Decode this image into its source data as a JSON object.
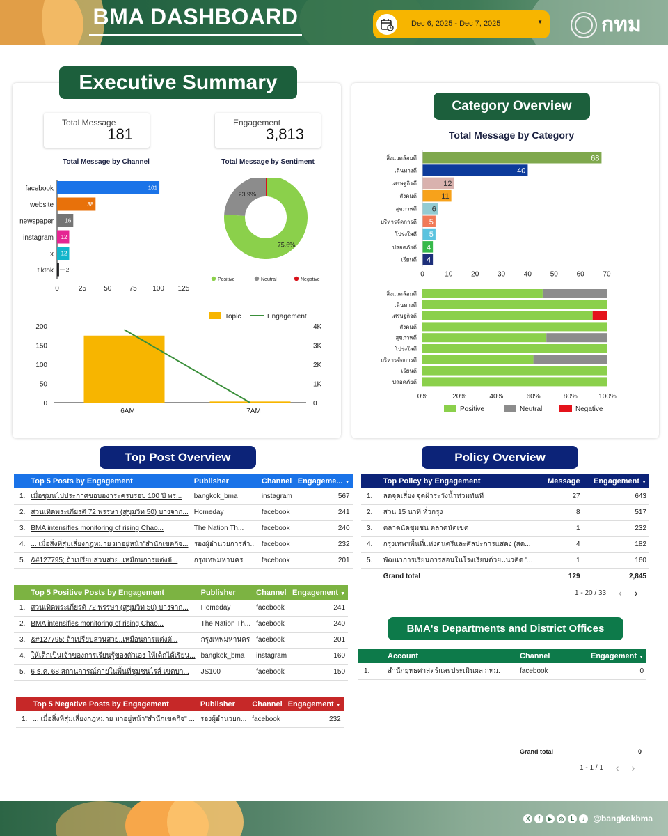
{
  "header": {
    "title": "BMA DASHBOARD",
    "date_range": "Dec 6, 2025 - Dec 7, 2025",
    "logo_text": "กทม"
  },
  "footer": {
    "handle": "@bangkokbma",
    "socials": [
      "x-icon",
      "facebook-icon",
      "youtube-icon",
      "instagram-icon",
      "line-icon",
      "tiktok-icon"
    ]
  },
  "executive": {
    "title": "Executive Summary",
    "total_message": {
      "label": "Total Message",
      "value": "181"
    },
    "engagement": {
      "label": "Engagement",
      "value": "3,813"
    },
    "channel_chart_title": "Total Message by Channel",
    "sentiment_chart_title": "Total Message by Sentiment"
  },
  "category": {
    "title": "Category Overview",
    "chart_title": "Total Message by Category"
  },
  "top_post": {
    "title": "Top Post Overview",
    "engagement_table": {
      "headers": [
        "Top 5 Posts by Engagement",
        "Publisher",
        "Channel",
        "Engageme..."
      ],
      "rows": [
        [
          "1.",
          "เมื่อชุมนไปประกาศขอบองาระครบรอบ 100 ปี พร...",
          "bangkok_bma",
          "instagram",
          "567"
        ],
        [
          "2.",
          "สวนเทิดพระเกียรติ 72 พรรษา (สุขุมวิท 50) บางจาก...",
          "Homeday",
          "facebook",
          "241"
        ],
        [
          "3.",
          "BMA intensifies monitoring of rising Chao...",
          "The Nation Th...",
          "facebook",
          "240"
        ],
        [
          "4.",
          "... เมื่อสิ่งที่สุ่มเสี่ยงกฎหมาย มาอยู่หน้า\"สำนักเขตกิจ...",
          "รองผู้อำนวยการสำ...",
          "facebook",
          "232"
        ],
        [
          "5.",
          "&#127795; ถ้าเปรียบสวนสวย..เหมือนการแต่งตั...",
          "กรุงเทพมหานคร",
          "facebook",
          "201"
        ]
      ]
    },
    "positive_table": {
      "headers": [
        "Top 5 Positive Posts by Engagement",
        "Publisher",
        "Channel",
        "Engagement"
      ],
      "rows": [
        [
          "1.",
          "สวนเทิดพระเกียรติ 72 พรรษา (สุขุมวิท 50) บางจาก...",
          "Homeday",
          "facebook",
          "241"
        ],
        [
          "2.",
          "BMA intensifies monitoring of rising Chao...",
          "The Nation Th...",
          "facebook",
          "240"
        ],
        [
          "3.",
          "&#127795; ถ้าเปรียบสวนสวย..เหมือนการแต่งตั...",
          "กรุงเทพมหานคร",
          "facebook",
          "201"
        ],
        [
          "4.",
          "ให้เด็กเป็นเจ้าของการเรียนรู้ของตัวเอง ให้เด็กได้เรียน...",
          "bangkok_bma",
          "instagram",
          "160"
        ],
        [
          "5.",
          "6 ธ.ค. 68 สถานการณ์ภายในพื้นที่ชุมชนไรส์ เขตบา...",
          "JS100",
          "facebook",
          "150"
        ]
      ]
    },
    "negative_table": {
      "headers": [
        "Top 5 Negative Posts by Engagement",
        "Publisher",
        "Channel",
        "Engagement"
      ],
      "rows": [
        [
          "1.",
          "... เมื่อสิ่งที่สุ่มเสี่ยงกฎหมาย มาอยู่หน้า\"สำนักเขตกิจ\" ...",
          "รองผู้อำนวยก...",
          "facebook",
          "232"
        ]
      ]
    }
  },
  "policy": {
    "title": "Policy Overview",
    "table": {
      "headers": [
        "Top Policy by Engagement",
        "Message",
        "Engagement"
      ],
      "rows": [
        [
          "1.",
          "ลดจุดเสี่ยง จุดฝ้าระวังน้ำท่วมทันที",
          "27",
          "643"
        ],
        [
          "2.",
          "สวน 15 นาที ทั่วกรุง",
          "8",
          "517"
        ],
        [
          "3.",
          "ตลาดนัดชุมชน ตลาดนัดเขต",
          "1",
          "232"
        ],
        [
          "4.",
          "กรุงเทพฯพื้นที่แห่งดนตรีและศิลปะการแสดง (สด...",
          "4",
          "182"
        ],
        [
          "5.",
          "พัฒนาการเรียนการสอนในโรงเรียนด้วยแนวคิด '...",
          "1",
          "160"
        ]
      ],
      "total_label": "Grand total",
      "total_message": "129",
      "total_engagement": "2,845",
      "pager": "1 - 20 / 33"
    }
  },
  "departments": {
    "title": "BMA's Departments and District Offices",
    "table": {
      "headers": [
        "Account",
        "Channel",
        "Engagement"
      ],
      "rows": [
        [
          "1.",
          "สำนักยุทธศาสตร์และประเมินผล กทม.",
          "facebook",
          "0"
        ]
      ],
      "total_label": "Grand total",
      "total_engagement": "0",
      "pager": "1 - 1 / 1"
    }
  },
  "chart_data": [
    {
      "type": "bar",
      "orientation": "horizontal",
      "title": "Total Message by Channel",
      "categories": [
        "facebook",
        "website",
        "newspaper",
        "instagram",
        "x",
        "tiktok"
      ],
      "values": [
        101,
        38,
        16,
        12,
        12,
        2
      ],
      "colors": [
        "#1a73e8",
        "#e8710a",
        "#757575",
        "#e52592",
        "#12b5cb",
        "#202124"
      ],
      "xlim": [
        0,
        125
      ],
      "xticks": [
        0,
        25,
        50,
        75,
        100,
        125
      ]
    },
    {
      "type": "pie",
      "title": "Total Message by Sentiment",
      "labels": [
        "Positive",
        "Neutral",
        "Negative",
        ""
      ],
      "values": [
        75.6,
        23.9,
        0.5,
        0
      ],
      "value_labels": [
        "75.6%",
        "23.9%",
        "",
        ""
      ],
      "colors": [
        "#8bd04b",
        "#8c8c8c",
        "#d8121b",
        "#f7b500"
      ]
    },
    {
      "type": "bar",
      "combo": true,
      "categories": [
        "6AM",
        "7AM"
      ],
      "series": [
        {
          "name": "Topic",
          "type": "bar",
          "values": [
            175,
            3
          ],
          "color": "#f7b500"
        },
        {
          "name": "Engagement",
          "type": "line",
          "values": [
            3813,
            0
          ],
          "color": "#3a8f3a"
        }
      ],
      "ylim": [
        0,
        200
      ],
      "yticks": [
        0,
        50,
        100,
        150,
        200
      ],
      "y2lim": [
        0,
        4000
      ],
      "y2ticks": [
        "0",
        "1K",
        "2K",
        "3K",
        "4K"
      ]
    },
    {
      "type": "bar",
      "orientation": "horizontal",
      "title": "Total Message by Category",
      "categories": [
        "สิ่งแวดล้อมดี",
        "เดินทางดี",
        "เศรษฐกิจดี",
        "สังคมดี",
        "สุขภาพดี",
        "บริหารจัดการดี",
        "โปร่งใสดี",
        "ปลอดภัยดี",
        "เรียนดี"
      ],
      "values": [
        68,
        40,
        12,
        11,
        6,
        5,
        5,
        4,
        4
      ],
      "colors": [
        "#7fa84d",
        "#0d3b9b",
        "#d9b2ae",
        "#f7a21b",
        "#93ccd3",
        "#f17a57",
        "#5bc3df",
        "#37b94a",
        "#1d2f7a"
      ],
      "xlim": [
        0,
        70
      ],
      "xticks": [
        0,
        10,
        20,
        30,
        40,
        50,
        60,
        70
      ]
    },
    {
      "type": "bar",
      "orientation": "horizontal",
      "stacked": "percent",
      "categories": [
        "สิ่งแวดล้อมดี",
        "เดินทางดี",
        "เศรษฐกิจดี",
        "สังคมดี",
        "สุขภาพดี",
        "โปร่งใสดี",
        "บริหารจัดการดี",
        "เรียนดี",
        "ปลอดภัยดี"
      ],
      "series": [
        {
          "name": "Positive",
          "values": [
            65,
            100,
            92,
            100,
            67,
            100,
            60,
            100,
            100
          ],
          "color": "#8bd04b"
        },
        {
          "name": "Neutral",
          "values": [
            35,
            0,
            0,
            0,
            33,
            0,
            40,
            0,
            0
          ],
          "color": "#8c8c8c"
        },
        {
          "name": "Negative",
          "values": [
            0,
            0,
            8,
            0,
            0,
            0,
            0,
            0,
            0
          ],
          "color": "#e4131b"
        }
      ],
      "xticks": [
        "0%",
        "20%",
        "40%",
        "60%",
        "80%",
        "100%"
      ]
    }
  ]
}
